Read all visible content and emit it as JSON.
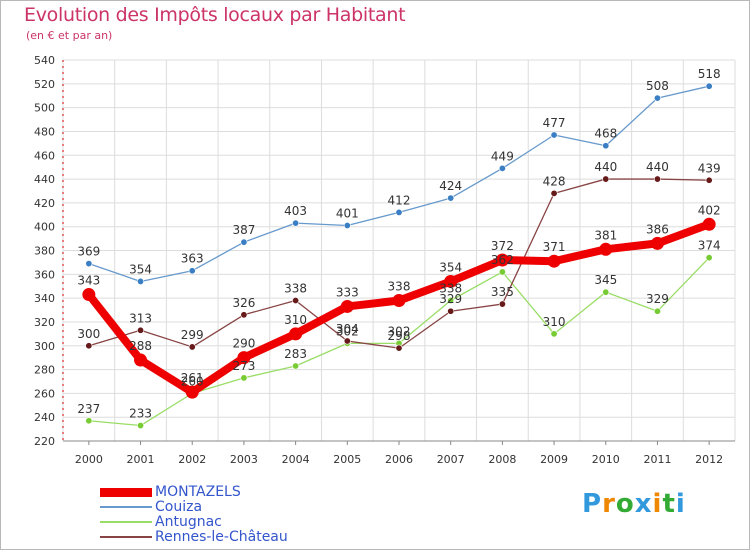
{
  "chart_data": {
    "type": "line",
    "title": "Evolution des Impôts locaux par Habitant",
    "subtitle": "(en € et par an)",
    "xlabel": "",
    "ylabel": "",
    "x": [
      "2000",
      "2001",
      "2002",
      "2003",
      "2004",
      "2005",
      "2006",
      "2007",
      "2008",
      "2009",
      "2010",
      "2011",
      "2012"
    ],
    "ylim": [
      220,
      540
    ],
    "yticks": [
      220,
      240,
      260,
      280,
      300,
      320,
      340,
      360,
      380,
      400,
      420,
      440,
      460,
      480,
      500,
      520,
      540
    ],
    "grid": true,
    "legend_position": "bottom-left",
    "series": [
      {
        "name": "Couiza",
        "color": "#6699cc",
        "marker_color": "#3a7fc4",
        "emphasis": false,
        "values": [
          369,
          354,
          363,
          387,
          403,
          401,
          412,
          424,
          449,
          477,
          468,
          508,
          518
        ]
      },
      {
        "name": "Antugnac",
        "color": "#99dd66",
        "marker_color": "#77cc33",
        "emphasis": false,
        "values": [
          237,
          233,
          260,
          273,
          283,
          302,
          302,
          338,
          362,
          310,
          345,
          329,
          374
        ]
      },
      {
        "name": "Rennes-le-Château",
        "color": "#884444",
        "marker_color": "#661a1a",
        "emphasis": false,
        "values": [
          300,
          313,
          299,
          326,
          338,
          304,
          298,
          329,
          335,
          428,
          440,
          440,
          439
        ]
      },
      {
        "name": "MONTAZELS",
        "color": "#ee0000",
        "marker_color": "#ee0000",
        "emphasis": true,
        "values": [
          343,
          288,
          261,
          290,
          310,
          333,
          338,
          354,
          372,
          371,
          381,
          386,
          402
        ]
      }
    ],
    "data_labels": {
      "Couiza": [
        "369",
        "354",
        "363",
        "387",
        "403",
        "401",
        "412",
        "424",
        "449",
        "477",
        "468",
        "508",
        "518"
      ],
      "Antugnac": [
        "237",
        "233",
        "260",
        "273",
        "283",
        "302",
        "302",
        "338",
        "362",
        "310",
        "345",
        "329",
        "374"
      ],
      "Rennes-le-Château": [
        "300",
        "313",
        "299",
        "326",
        "338",
        "304",
        "298",
        "329",
        "335",
        "428",
        "440",
        "440",
        "439"
      ],
      "MONTAZELS": [
        "343",
        "288",
        "261",
        "290",
        "310",
        "333",
        "338",
        "354",
        "372",
        "371",
        "381",
        "386",
        "402"
      ]
    }
  },
  "legend": {
    "items": [
      {
        "label": "MONTAZELS",
        "color": "#ee0000",
        "text_color": "#3355cc",
        "emphasis": true
      },
      {
        "label": "Couiza",
        "color": "#6699cc",
        "text_color": "#3355cc",
        "emphasis": false
      },
      {
        "label": "Antugnac",
        "color": "#99dd66",
        "text_color": "#3355cc",
        "emphasis": false
      },
      {
        "label": "Rennes-le-Château",
        "color": "#884444",
        "text_color": "#3355cc",
        "emphasis": false
      }
    ]
  },
  "logo": {
    "letters": [
      "P",
      "r",
      "o",
      "x",
      "i",
      "t",
      "i"
    ],
    "colors": [
      "#3399dd",
      "#ee8800",
      "#33aa33",
      "#3399dd",
      "#ee8800",
      "#33aa33",
      "#3399dd"
    ]
  }
}
